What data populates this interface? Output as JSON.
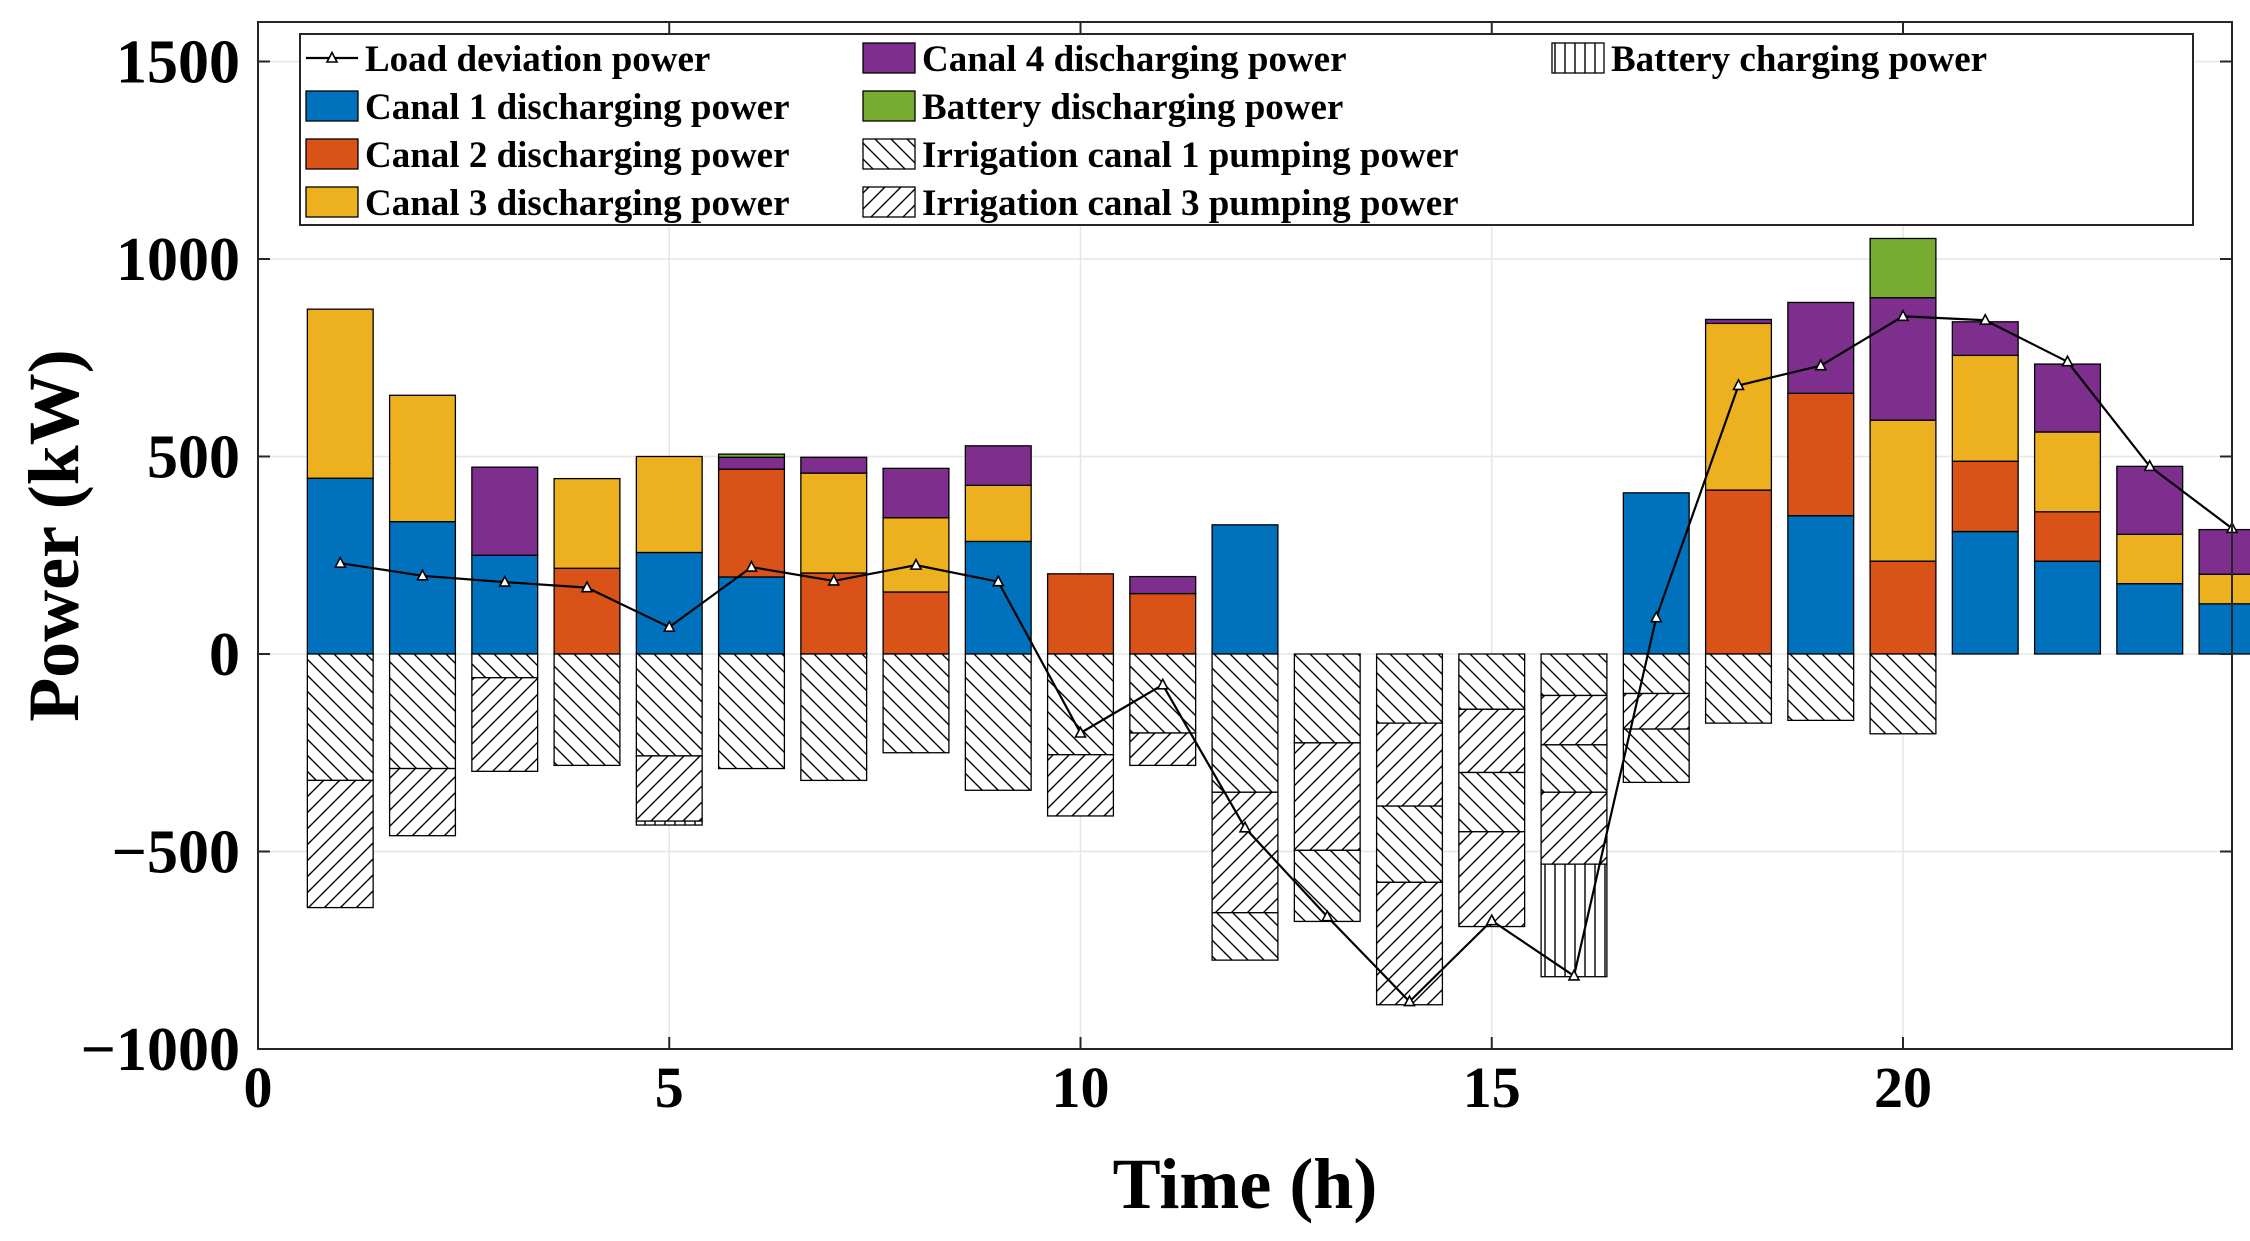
{
  "chart_data": {
    "type": "bar",
    "stacked": true,
    "title": "",
    "xlabel": "Time (h)",
    "ylabel": "Power (kW)",
    "xlim": [
      0,
      24
    ],
    "ylim": [
      -1000,
      1600
    ],
    "xticks": [
      "0",
      "5",
      "10",
      "15",
      "20"
    ],
    "yticks": [
      "-1000",
      "-500",
      "0",
      "500",
      "1000",
      "1500"
    ],
    "grid": true,
    "legend_position": "top",
    "hours": [
      1,
      2,
      3,
      4,
      5,
      6,
      7,
      8,
      9,
      10,
      11,
      12,
      13,
      14,
      15,
      16,
      17,
      18,
      19,
      20,
      21,
      22,
      23,
      24
    ],
    "series": [
      {
        "name": "Canal 1 discharging power",
        "color": "#0072BD",
        "pattern": "solid",
        "values": [
          445,
          335,
          250,
          0,
          257,
          195,
          0,
          0,
          285,
          0,
          0,
          327,
          0,
          0,
          0,
          0,
          408,
          0,
          350,
          0,
          310,
          235,
          178,
          127
        ]
      },
      {
        "name": "Canal 2 discharging power",
        "color": "#D95319",
        "pattern": "solid",
        "values": [
          0,
          0,
          0,
          217,
          0,
          273,
          205,
          157,
          0,
          203,
          153,
          0,
          0,
          0,
          0,
          0,
          0,
          415,
          310,
          235,
          178,
          125,
          0,
          0
        ]
      },
      {
        "name": "Canal 3 discharging power",
        "color": "#EDB120",
        "pattern": "solid",
        "values": [
          428,
          320,
          0,
          227,
          243,
          0,
          253,
          188,
          142,
          0,
          0,
          0,
          0,
          0,
          0,
          0,
          0,
          422,
          0,
          357,
          268,
          202,
          125,
          75
        ]
      },
      {
        "name": "Canal 4 discharging power",
        "color": "#7E2F8E",
        "pattern": "solid",
        "values": [
          0,
          0,
          223,
          0,
          0,
          30,
          40,
          125,
          100,
          0,
          43,
          0,
          0,
          0,
          0,
          0,
          0,
          10,
          230,
          310,
          85,
          172,
          172,
          113
        ]
      },
      {
        "name": "Battery discharging power",
        "color": "#77AC30",
        "pattern": "solid",
        "values": [
          0,
          0,
          0,
          0,
          0,
          8,
          0,
          0,
          0,
          0,
          0,
          0,
          0,
          0,
          0,
          0,
          0,
          0,
          0,
          150,
          0,
          0,
          0,
          0
        ]
      },
      {
        "name": "Irrigation canal 1 pumping power",
        "color": "#ffffff",
        "pattern": "backslash",
        "values": [
          -320,
          -290,
          -60,
          -282,
          -258,
          -290,
          -320,
          -250,
          -345,
          -255,
          -200,
          -350,
          -225,
          -175,
          -140,
          -105,
          -100,
          -175,
          -168,
          -202,
          0,
          0,
          0,
          0
        ]
      },
      {
        "name": "Irrigation canal 3 pumping power",
        "color": "#ffffff",
        "pattern": "slash",
        "values": [
          -322,
          -170,
          -237,
          0,
          -165,
          0,
          0,
          0,
          0,
          -155,
          -82,
          -305,
          -272,
          -210,
          -160,
          -125,
          -90,
          0,
          0,
          0,
          0,
          0,
          0,
          0
        ]
      },
      {
        "name": "Battery charging power",
        "color": "#ffffff",
        "pattern": "vertical",
        "values": [
          0,
          0,
          0,
          0,
          -10,
          0,
          0,
          0,
          0,
          0,
          0,
          0,
          0,
          0,
          0,
          0,
          0,
          0,
          0,
          0,
          0,
          0,
          0,
          0
        ]
      },
      {
        "name": "Irrigation canal 1 pumping power (2)",
        "legend": false,
        "color": "#ffffff",
        "pattern": "backslash",
        "values": [
          0,
          0,
          0,
          0,
          0,
          0,
          0,
          0,
          0,
          0,
          0,
          -120,
          -180,
          -193,
          -150,
          -120,
          -135,
          0,
          0,
          0,
          0,
          0,
          0,
          0
        ]
      },
      {
        "name": "Irrigation canal 3 pumping power (2)",
        "legend": false,
        "color": "#ffffff",
        "pattern": "slash",
        "values": [
          0,
          0,
          0,
          0,
          0,
          0,
          0,
          0,
          0,
          0,
          0,
          0,
          0,
          -310,
          -240,
          -182,
          0,
          0,
          0,
          0,
          0,
          0,
          0,
          0
        ]
      },
      {
        "name": "Battery charging power (2)",
        "legend": false,
        "color": "#ffffff",
        "pattern": "vertical",
        "values": [
          0,
          0,
          0,
          0,
          0,
          0,
          0,
          0,
          0,
          0,
          0,
          0,
          0,
          0,
          0,
          -285,
          0,
          0,
          0,
          0,
          0,
          0,
          0,
          0
        ]
      }
    ],
    "line": {
      "name": "Load deviation power",
      "values": [
        230,
        198,
        182,
        168,
        68,
        220,
        185,
        225,
        183,
        -200,
        -78,
        -440,
        -665,
        -880,
        -675,
        -815,
        92,
        680,
        730,
        855,
        845,
        740,
        475,
        318
      ]
    },
    "legend_order": [
      "Load deviation power",
      "Canal 1 discharging power",
      "Canal 2 discharging power",
      "Canal 3 discharging power",
      "Canal 4 discharging power",
      "Battery discharging power",
      "Irrigation canal 1 pumping power",
      "Irrigation canal 3 pumping power",
      "Battery charging power"
    ]
  }
}
